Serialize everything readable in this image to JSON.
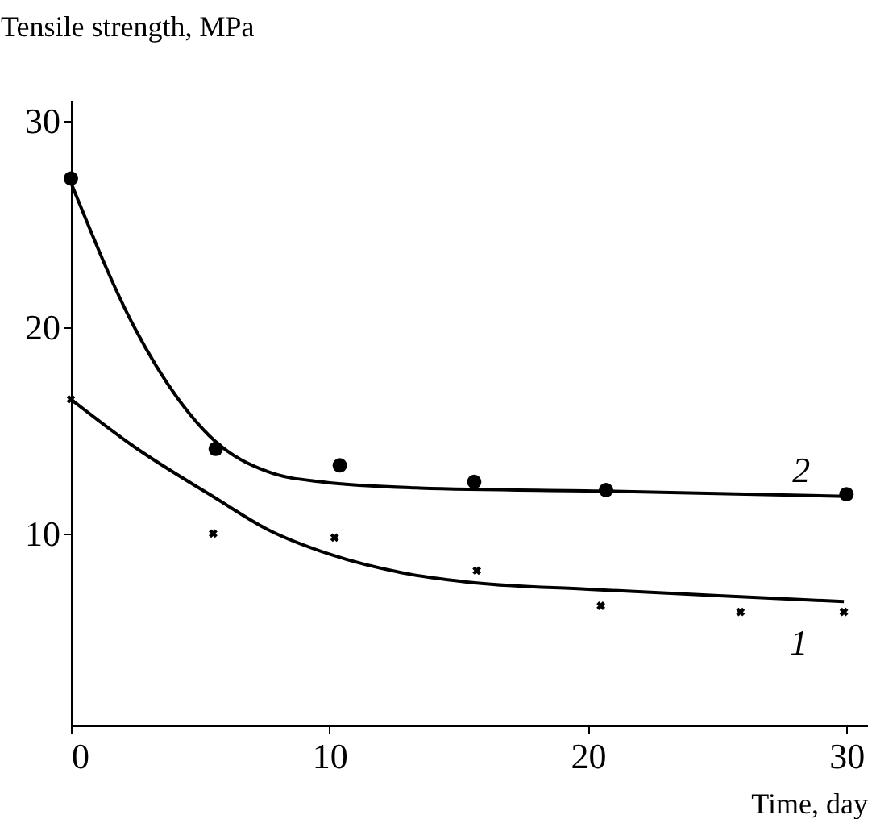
{
  "chart_data": {
    "type": "line",
    "xlabel": "Time, day",
    "ylabel": "Tensile strength, MPa",
    "xlim": [
      0,
      30.8
    ],
    "ylim": [
      0.7,
      31
    ],
    "xticks": [
      0,
      10,
      20,
      30
    ],
    "yticks": [
      10,
      20,
      30
    ],
    "grid": false,
    "series": [
      {
        "type": "scatter",
        "marker": "circle",
        "color": "#000000",
        "x": [
          0,
          5.6,
          10.4,
          15.6,
          20.7,
          30
        ],
        "values": [
          27.2,
          14.1,
          13.3,
          12.5,
          12.1,
          11.9
        ]
      },
      {
        "type": "scatter",
        "marker": "cross",
        "color": "#000000",
        "x": [
          0,
          5.5,
          10.2,
          15.7,
          20.5,
          25.9,
          29.9
        ],
        "values": [
          16.5,
          10.0,
          9.8,
          8.2,
          6.5,
          6.2,
          6.2
        ]
      },
      {
        "name": "2",
        "marker": "none",
        "color": "#000000",
        "x": [
          0,
          2.45,
          4.1,
          5.55,
          7.6,
          9.7,
          13.5,
          20.7,
          30
        ],
        "values": [
          27.0,
          20.0,
          16.6,
          14.5,
          13.0,
          12.5,
          12.2,
          12.05,
          11.8
        ]
      },
      {
        "name": "1",
        "marker": "none",
        "color": "#000000",
        "x": [
          0,
          2.45,
          5.55,
          7.6,
          10,
          12.8,
          15.7,
          20,
          24.9,
          29.9
        ],
        "values": [
          16.5,
          14.2,
          11.75,
          10.2,
          9.0,
          8.1,
          7.6,
          7.3,
          7.0,
          6.7
        ]
      }
    ]
  }
}
